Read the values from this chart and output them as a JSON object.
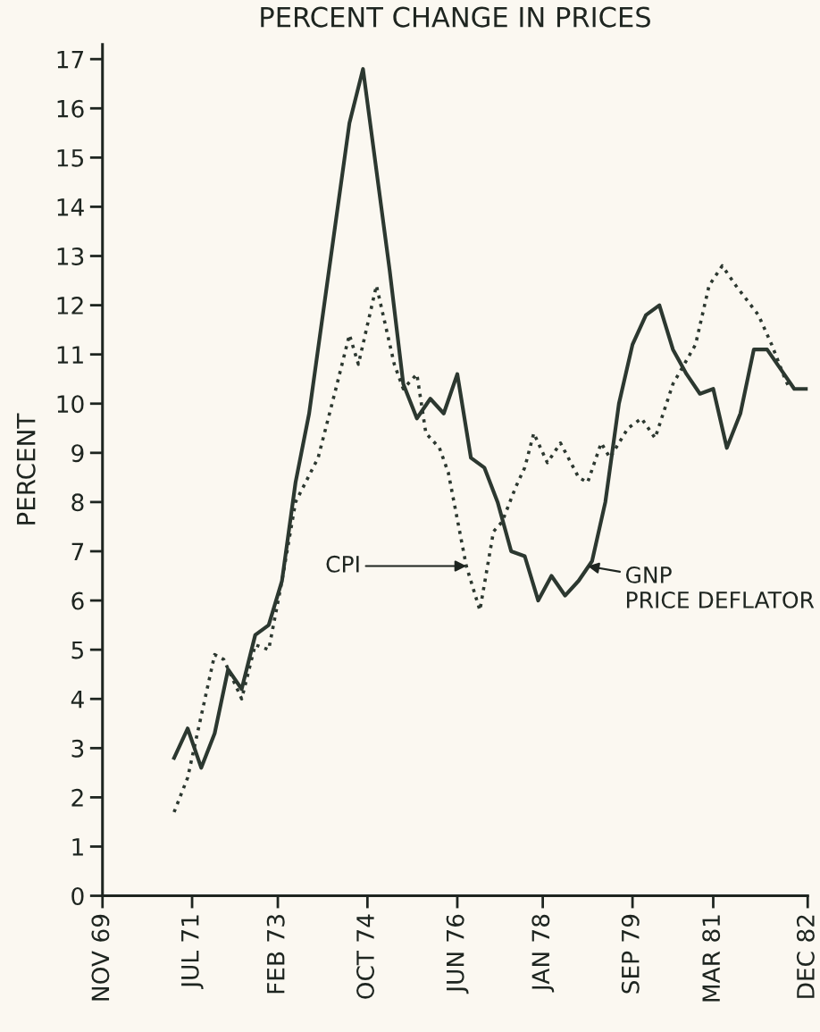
{
  "chart_data": {
    "type": "line",
    "title": "PERCENT CHANGE IN PRICES",
    "ylabel": "PERCENT",
    "xlim": [
      "1969-11",
      "1982-12"
    ],
    "ylim": [
      0,
      17.3
    ],
    "xticks": [
      {
        "value": "1969-11",
        "label": "NOV 69"
      },
      {
        "value": "1971-07",
        "label": "JUL 71"
      },
      {
        "value": "1973-02",
        "label": "FEB 73"
      },
      {
        "value": "1974-10",
        "label": "OCT 74"
      },
      {
        "value": "1976-06",
        "label": "JUN 76"
      },
      {
        "value": "1978-01",
        "label": "JAN 78"
      },
      {
        "value": "1979-09",
        "label": "SEP 79"
      },
      {
        "value": "1981-03",
        "label": "MAR 81"
      },
      {
        "value": "1982-12",
        "label": "DEC 82"
      }
    ],
    "yticks": [
      0,
      1,
      2,
      3,
      4,
      5,
      6,
      7,
      8,
      9,
      10,
      11,
      12,
      13,
      14,
      15,
      16,
      17
    ],
    "grid": false,
    "legend": false,
    "marker": "none",
    "series": [
      {
        "color": "#2c3830",
        "line_style": "solid",
        "x": [
          "1971-03",
          "1971-06",
          "1971-09",
          "1971-12",
          "1972-03",
          "1972-06",
          "1972-09",
          "1972-12",
          "1973-03",
          "1973-06",
          "1973-09",
          "1974-06",
          "1974-09",
          "1975-03",
          "1975-06",
          "1975-09",
          "1975-12",
          "1976-03",
          "1976-06",
          "1976-09",
          "1976-12",
          "1977-03",
          "1977-06",
          "1977-09",
          "1977-12",
          "1978-03",
          "1978-06",
          "1978-09",
          "1978-12",
          "1979-03",
          "1979-06",
          "1979-09",
          "1979-12",
          "1980-03",
          "1980-06",
          "1980-09",
          "1980-12",
          "1981-03",
          "1981-06",
          "1981-09",
          "1981-12",
          "1982-03",
          "1982-06",
          "1982-09",
          "1982-12"
        ],
        "values": [
          2.8,
          3.4,
          2.6,
          3.3,
          4.6,
          4.2,
          5.3,
          5.5,
          6.4,
          8.4,
          9.8,
          15.7,
          16.8,
          12.7,
          10.4,
          9.7,
          10.1,
          9.8,
          10.6,
          8.9,
          8.7,
          8.0,
          7.0,
          6.9,
          6.0,
          6.5,
          6.1,
          6.4,
          6.8,
          8.0,
          10.0,
          11.2,
          11.8,
          12.0,
          11.1,
          10.6,
          10.2,
          10.3,
          9.1,
          9.8,
          11.1,
          11.1,
          10.7,
          10.3,
          10.3
        ]
      },
      {
        "color": "#2c3830",
        "line_style": "dotted",
        "x": [
          "1971-03",
          "1971-06",
          "1971-12",
          "1972-02",
          "1972-06",
          "1972-09",
          "1972-12",
          "1973-03",
          "1973-06",
          "1973-11",
          "1974-03",
          "1974-06",
          "1974-08",
          "1974-12",
          "1975-04",
          "1975-06",
          "1975-09",
          "1975-11",
          "1976-02",
          "1976-04",
          "1976-08",
          "1976-11",
          "1977-02",
          "1977-04",
          "1977-07",
          "1977-09",
          "1977-11",
          "1978-02",
          "1978-05",
          "1978-09",
          "1978-11",
          "1979-02",
          "1979-04",
          "1979-08",
          "1979-11",
          "1980-02",
          "1980-06",
          "1980-11",
          "1981-02",
          "1981-05",
          "1981-08",
          "1982-01",
          "1982-04",
          "1982-07",
          "1982-08"
        ],
        "values": [
          1.7,
          2.4,
          4.9,
          4.8,
          4.0,
          5.1,
          5.0,
          6.4,
          8.0,
          8.9,
          10.3,
          11.4,
          10.8,
          12.4,
          10.8,
          10.3,
          10.6,
          9.4,
          9.1,
          8.6,
          6.7,
          5.8,
          7.4,
          7.6,
          8.3,
          8.7,
          9.4,
          8.8,
          9.2,
          8.5,
          8.4,
          9.2,
          8.9,
          9.5,
          9.7,
          9.3,
          10.4,
          11.2,
          12.4,
          12.8,
          12.4,
          11.8,
          11.2,
          10.5,
          10.3
        ]
      }
    ],
    "annotations": [
      {
        "text": "CPI",
        "x": "1976-08",
        "y": 6.7
      },
      {
        "text": "GNP\nPRICE DEFLATOR",
        "x": "1978-11",
        "y": 6.7
      }
    ]
  }
}
